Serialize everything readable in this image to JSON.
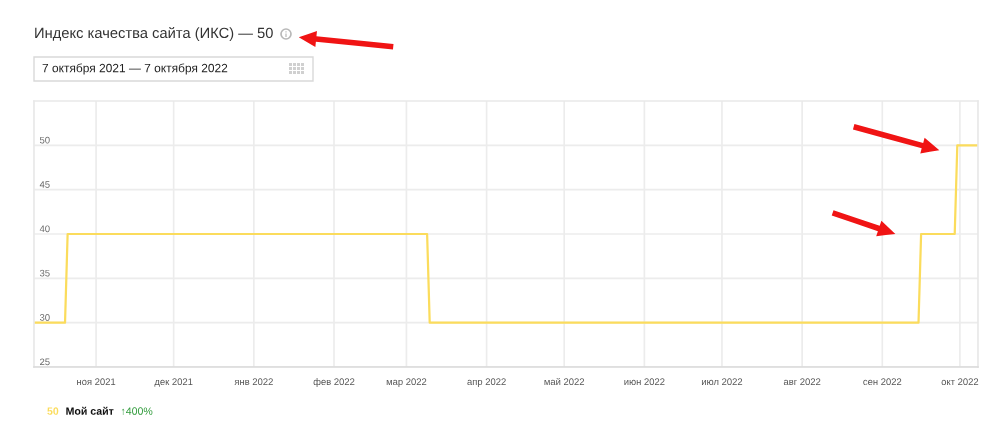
{
  "chart_data": {
    "type": "line",
    "title": "Индекс качества сайта (ИКС) — 50",
    "subtitle": "7 октября 2021 — 7 октября 2022",
    "x": [
      "2021-10-08",
      "2021-10-20",
      "2021-10-21",
      "2022-03-09",
      "2022-03-10",
      "2022-09-15",
      "2022-09-16",
      "2022-09-29",
      "2022-09-30",
      "2022-10-08"
    ],
    "series": [
      {
        "name": "Мой сайт",
        "color": "#fbdc5c",
        "values": [
          30,
          30,
          40,
          40,
          30,
          30,
          40,
          40,
          50,
          50
        ]
      }
    ],
    "xlim": [
      "2021-10-08",
      "2022-10-08"
    ],
    "xticks": [
      {
        "value": "2021-11-01",
        "label": "ноя 2021"
      },
      {
        "value": "2021-12-01",
        "label": "дек 2021"
      },
      {
        "value": "2022-01-01",
        "label": "янв 2022"
      },
      {
        "value": "2022-02-01",
        "label": "фев 2022"
      },
      {
        "value": "2022-03-01",
        "label": "мар 2022"
      },
      {
        "value": "2022-04-01",
        "label": "апр 2022"
      },
      {
        "value": "2022-05-01",
        "label": "май 2022"
      },
      {
        "value": "2022-06-01",
        "label": "июн 2022"
      },
      {
        "value": "2022-07-01",
        "label": "июл 2022"
      },
      {
        "value": "2022-08-01",
        "label": "авг 2022"
      },
      {
        "value": "2022-09-01",
        "label": "сен 2022"
      },
      {
        "value": "2022-10-01",
        "label": "окт 2022"
      }
    ],
    "ylim": [
      25,
      55
    ],
    "yticks": [
      25,
      30,
      35,
      40,
      45,
      50
    ],
    "grid": true,
    "legend": "bottom left",
    "line_style": "solid",
    "annotations": [
      "50",
      "↑400%"
    ]
  }
}
